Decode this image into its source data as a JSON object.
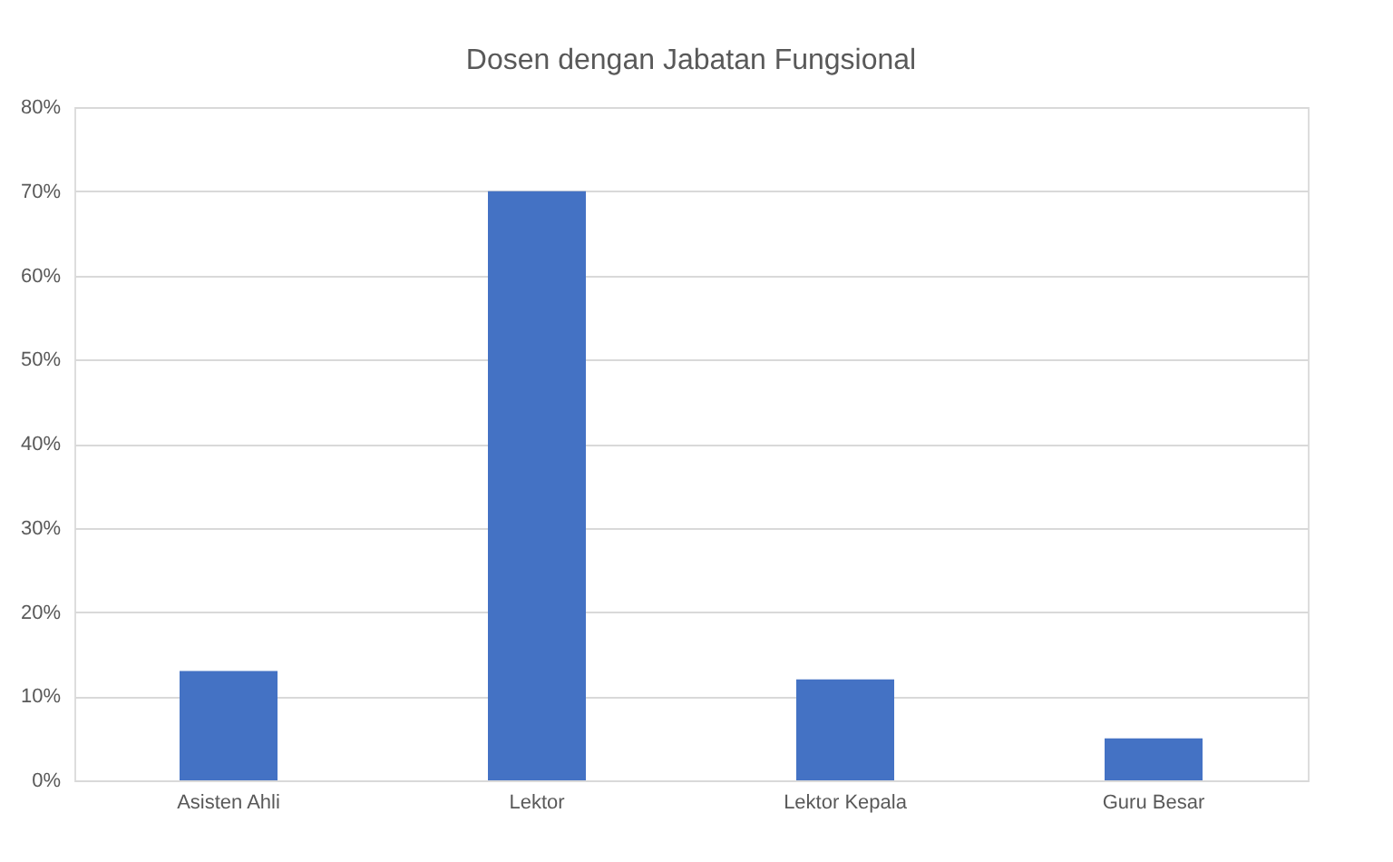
{
  "chart_data": {
    "type": "bar",
    "title": "Dosen dengan Jabatan Fungsional",
    "categories": [
      "Asisten Ahli",
      "Lektor",
      "Lektor Kepala",
      "Guru Besar"
    ],
    "values": [
      13,
      70,
      12,
      5
    ],
    "color": "#4472c4",
    "ylim": [
      0,
      80
    ],
    "yticks": [
      {
        "value": 0,
        "label": "0%"
      },
      {
        "value": 10,
        "label": "10%"
      },
      {
        "value": 20,
        "label": "20%"
      },
      {
        "value": 30,
        "label": "30%"
      },
      {
        "value": 40,
        "label": "40%"
      },
      {
        "value": 50,
        "label": "50%"
      },
      {
        "value": 60,
        "label": "60%"
      },
      {
        "value": 70,
        "label": "70%"
      },
      {
        "value": 80,
        "label": "80%"
      }
    ],
    "grid": "y"
  }
}
